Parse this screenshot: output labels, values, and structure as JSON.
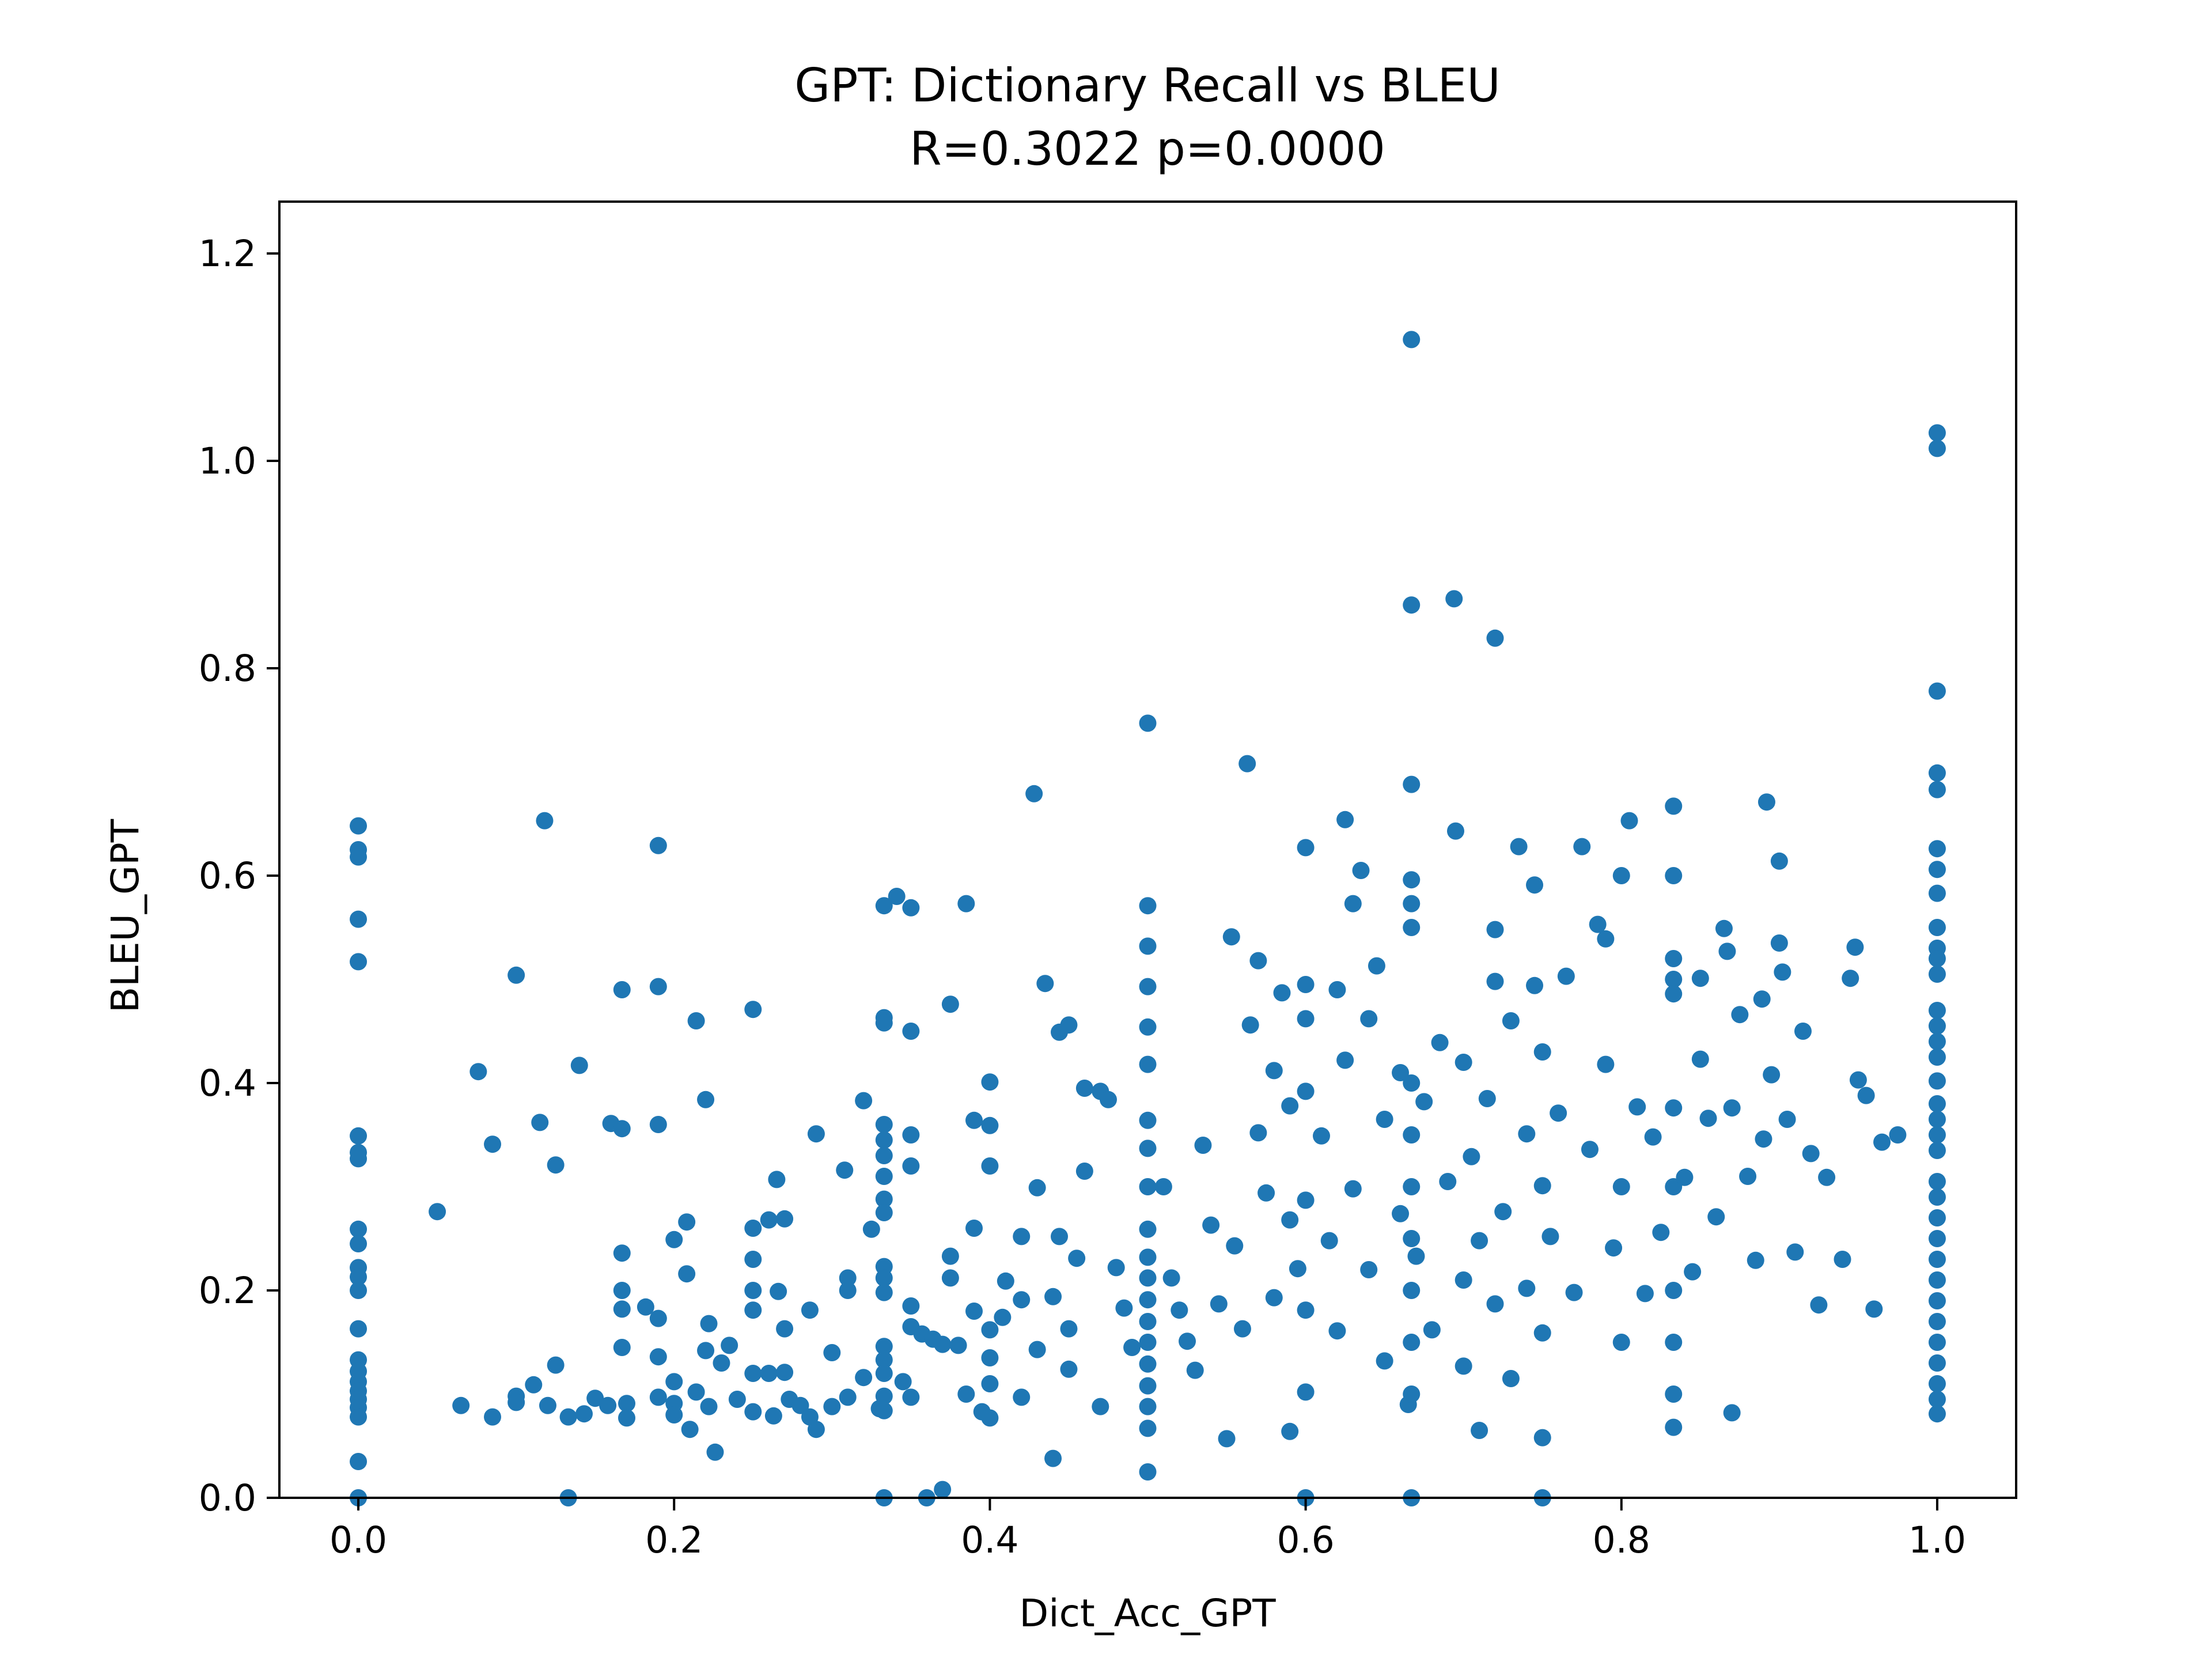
{
  "chart_data": {
    "type": "scatter",
    "title": "GPT: Dictionary Recall vs BLEU",
    "subtitle": "R=0.3022 p=0.0000",
    "xlabel": "Dict_Acc_GPT",
    "ylabel": "BLEU_GPT",
    "xlim": [
      -0.05,
      1.05
    ],
    "ylim": [
      0.0,
      1.25
    ],
    "xticks": [
      "0.0",
      "0.2",
      "0.4",
      "0.6",
      "0.8",
      "1.0"
    ],
    "yticks": [
      "0.0",
      "0.2",
      "0.4",
      "0.6",
      "0.8",
      "1.0",
      "1.2"
    ],
    "grid": false,
    "legend": "none",
    "marker_color": "#1f77b4",
    "points": [
      [
        0.0,
        0.648
      ],
      [
        0.0,
        0.625
      ],
      [
        0.0,
        0.618
      ],
      [
        0.0,
        0.558
      ],
      [
        0.0,
        0.517
      ],
      [
        0.0,
        0.349
      ],
      [
        0.0,
        0.333
      ],
      [
        0.0,
        0.327
      ],
      [
        0.0,
        0.259
      ],
      [
        0.0,
        0.245
      ],
      [
        0.0,
        0.222
      ],
      [
        0.0,
        0.213
      ],
      [
        0.0,
        0.2
      ],
      [
        0.0,
        0.163
      ],
      [
        0.0,
        0.133
      ],
      [
        0.0,
        0.122
      ],
      [
        0.0,
        0.112
      ],
      [
        0.0,
        0.103
      ],
      [
        0.0,
        0.095
      ],
      [
        0.0,
        0.087
      ],
      [
        0.0,
        0.078
      ],
      [
        0.0,
        0.035
      ],
      [
        0.0,
        0.0
      ],
      [
        0.05,
        0.276
      ],
      [
        0.065,
        0.089
      ],
      [
        0.076,
        0.411
      ],
      [
        0.085,
        0.341
      ],
      [
        0.085,
        0.078
      ],
      [
        0.1,
        0.504
      ],
      [
        0.1,
        0.098
      ],
      [
        0.1,
        0.092
      ],
      [
        0.111,
        0.109
      ],
      [
        0.115,
        0.362
      ],
      [
        0.118,
        0.653
      ],
      [
        0.12,
        0.089
      ],
      [
        0.125,
        0.321
      ],
      [
        0.125,
        0.128
      ],
      [
        0.133,
        0.0
      ],
      [
        0.133,
        0.078
      ],
      [
        0.14,
        0.417
      ],
      [
        0.143,
        0.081
      ],
      [
        0.15,
        0.096
      ],
      [
        0.158,
        0.089
      ],
      [
        0.16,
        0.361
      ],
      [
        0.167,
        0.49
      ],
      [
        0.167,
        0.356
      ],
      [
        0.167,
        0.236
      ],
      [
        0.167,
        0.2
      ],
      [
        0.167,
        0.182
      ],
      [
        0.167,
        0.145
      ],
      [
        0.17,
        0.091
      ],
      [
        0.17,
        0.077
      ],
      [
        0.182,
        0.184
      ],
      [
        0.19,
        0.493
      ],
      [
        0.19,
        0.629
      ],
      [
        0.19,
        0.36
      ],
      [
        0.19,
        0.173
      ],
      [
        0.19,
        0.136
      ],
      [
        0.19,
        0.097
      ],
      [
        0.2,
        0.249
      ],
      [
        0.2,
        0.112
      ],
      [
        0.2,
        0.091
      ],
      [
        0.2,
        0.08
      ],
      [
        0.208,
        0.266
      ],
      [
        0.208,
        0.216
      ],
      [
        0.21,
        0.066
      ],
      [
        0.214,
        0.46
      ],
      [
        0.214,
        0.102
      ],
      [
        0.22,
        0.384
      ],
      [
        0.22,
        0.142
      ],
      [
        0.222,
        0.168
      ],
      [
        0.222,
        0.088
      ],
      [
        0.226,
        0.044
      ],
      [
        0.23,
        0.13
      ],
      [
        0.235,
        0.147
      ],
      [
        0.24,
        0.095
      ],
      [
        0.25,
        0.471
      ],
      [
        0.25,
        0.26
      ],
      [
        0.25,
        0.23
      ],
      [
        0.25,
        0.2
      ],
      [
        0.25,
        0.181
      ],
      [
        0.25,
        0.12
      ],
      [
        0.25,
        0.083
      ],
      [
        0.26,
        0.268
      ],
      [
        0.26,
        0.12
      ],
      [
        0.263,
        0.079
      ],
      [
        0.265,
        0.307
      ],
      [
        0.266,
        0.199
      ],
      [
        0.27,
        0.269
      ],
      [
        0.27,
        0.163
      ],
      [
        0.27,
        0.121
      ],
      [
        0.273,
        0.095
      ],
      [
        0.28,
        0.089
      ],
      [
        0.286,
        0.181
      ],
      [
        0.286,
        0.078
      ],
      [
        0.29,
        0.351
      ],
      [
        0.29,
        0.066
      ],
      [
        0.3,
        0.14
      ],
      [
        0.3,
        0.088
      ],
      [
        0.308,
        0.316
      ],
      [
        0.31,
        0.212
      ],
      [
        0.31,
        0.2
      ],
      [
        0.31,
        0.097
      ],
      [
        0.32,
        0.383
      ],
      [
        0.32,
        0.116
      ],
      [
        0.325,
        0.259
      ],
      [
        0.33,
        0.086
      ],
      [
        0.333,
        0.571
      ],
      [
        0.333,
        0.463
      ],
      [
        0.333,
        0.458
      ],
      [
        0.333,
        0.36
      ],
      [
        0.333,
        0.345
      ],
      [
        0.333,
        0.33
      ],
      [
        0.333,
        0.31
      ],
      [
        0.333,
        0.288
      ],
      [
        0.333,
        0.275
      ],
      [
        0.333,
        0.223
      ],
      [
        0.333,
        0.212
      ],
      [
        0.333,
        0.198
      ],
      [
        0.333,
        0.146
      ],
      [
        0.333,
        0.133
      ],
      [
        0.333,
        0.12
      ],
      [
        0.333,
        0.098
      ],
      [
        0.333,
        0.084
      ],
      [
        0.333,
        0.0
      ],
      [
        0.341,
        0.58
      ],
      [
        0.345,
        0.112
      ],
      [
        0.35,
        0.569
      ],
      [
        0.35,
        0.45
      ],
      [
        0.35,
        0.35
      ],
      [
        0.35,
        0.32
      ],
      [
        0.35,
        0.185
      ],
      [
        0.35,
        0.165
      ],
      [
        0.35,
        0.097
      ],
      [
        0.357,
        0.158
      ],
      [
        0.36,
        0.0
      ],
      [
        0.364,
        0.153
      ],
      [
        0.37,
        0.008
      ],
      [
        0.37,
        0.148
      ],
      [
        0.375,
        0.476
      ],
      [
        0.375,
        0.233
      ],
      [
        0.375,
        0.212
      ],
      [
        0.38,
        0.147
      ],
      [
        0.385,
        0.573
      ],
      [
        0.385,
        0.1
      ],
      [
        0.39,
        0.364
      ],
      [
        0.39,
        0.26
      ],
      [
        0.39,
        0.18
      ],
      [
        0.395,
        0.083
      ],
      [
        0.4,
        0.401
      ],
      [
        0.4,
        0.359
      ],
      [
        0.4,
        0.32
      ],
      [
        0.4,
        0.162
      ],
      [
        0.4,
        0.135
      ],
      [
        0.4,
        0.11
      ],
      [
        0.4,
        0.077
      ],
      [
        0.408,
        0.174
      ],
      [
        0.41,
        0.209
      ],
      [
        0.42,
        0.252
      ],
      [
        0.42,
        0.191
      ],
      [
        0.42,
        0.097
      ],
      [
        0.428,
        0.679
      ],
      [
        0.43,
        0.299
      ],
      [
        0.43,
        0.143
      ],
      [
        0.435,
        0.496
      ],
      [
        0.44,
        0.038
      ],
      [
        0.44,
        0.194
      ],
      [
        0.444,
        0.449
      ],
      [
        0.444,
        0.252
      ],
      [
        0.45,
        0.456
      ],
      [
        0.45,
        0.163
      ],
      [
        0.45,
        0.124
      ],
      [
        0.455,
        0.231
      ],
      [
        0.46,
        0.395
      ],
      [
        0.46,
        0.315
      ],
      [
        0.47,
        0.392
      ],
      [
        0.47,
        0.088
      ],
      [
        0.475,
        0.384
      ],
      [
        0.48,
        0.222
      ],
      [
        0.485,
        0.183
      ],
      [
        0.49,
        0.145
      ],
      [
        0.5,
        0.747
      ],
      [
        0.5,
        0.571
      ],
      [
        0.5,
        0.532
      ],
      [
        0.5,
        0.493
      ],
      [
        0.5,
        0.454
      ],
      [
        0.5,
        0.418
      ],
      [
        0.5,
        0.364
      ],
      [
        0.5,
        0.337
      ],
      [
        0.5,
        0.3
      ],
      [
        0.5,
        0.259
      ],
      [
        0.5,
        0.232
      ],
      [
        0.5,
        0.212
      ],
      [
        0.5,
        0.191
      ],
      [
        0.5,
        0.17
      ],
      [
        0.5,
        0.15
      ],
      [
        0.5,
        0.129
      ],
      [
        0.5,
        0.108
      ],
      [
        0.5,
        0.088
      ],
      [
        0.5,
        0.067
      ],
      [
        0.5,
        0.025
      ],
      [
        0.51,
        0.3
      ],
      [
        0.515,
        0.212
      ],
      [
        0.52,
        0.181
      ],
      [
        0.525,
        0.151
      ],
      [
        0.53,
        0.123
      ],
      [
        0.535,
        0.34
      ],
      [
        0.54,
        0.263
      ],
      [
        0.545,
        0.187
      ],
      [
        0.55,
        0.057
      ],
      [
        0.553,
        0.541
      ],
      [
        0.555,
        0.243
      ],
      [
        0.56,
        0.163
      ],
      [
        0.563,
        0.708
      ],
      [
        0.565,
        0.456
      ],
      [
        0.57,
        0.352
      ],
      [
        0.57,
        0.518
      ],
      [
        0.575,
        0.294
      ],
      [
        0.58,
        0.412
      ],
      [
        0.58,
        0.193
      ],
      [
        0.585,
        0.487
      ],
      [
        0.59,
        0.378
      ],
      [
        0.59,
        0.268
      ],
      [
        0.59,
        0.064
      ],
      [
        0.595,
        0.221
      ],
      [
        0.6,
        0.627
      ],
      [
        0.6,
        0.495
      ],
      [
        0.6,
        0.462
      ],
      [
        0.6,
        0.392
      ],
      [
        0.6,
        0.287
      ],
      [
        0.6,
        0.181
      ],
      [
        0.6,
        0.102
      ],
      [
        0.6,
        0.0
      ],
      [
        0.61,
        0.349
      ],
      [
        0.615,
        0.248
      ],
      [
        0.62,
        0.49
      ],
      [
        0.62,
        0.161
      ],
      [
        0.625,
        0.654
      ],
      [
        0.625,
        0.422
      ],
      [
        0.63,
        0.573
      ],
      [
        0.63,
        0.298
      ],
      [
        0.635,
        0.605
      ],
      [
        0.64,
        0.462
      ],
      [
        0.64,
        0.22
      ],
      [
        0.645,
        0.513
      ],
      [
        0.65,
        0.365
      ],
      [
        0.65,
        0.132
      ],
      [
        0.66,
        0.41
      ],
      [
        0.66,
        0.274
      ],
      [
        0.665,
        0.09
      ],
      [
        0.667,
        1.117
      ],
      [
        0.667,
        0.861
      ],
      [
        0.667,
        0.688
      ],
      [
        0.667,
        0.596
      ],
      [
        0.667,
        0.573
      ],
      [
        0.667,
        0.55
      ],
      [
        0.667,
        0.4
      ],
      [
        0.667,
        0.35
      ],
      [
        0.667,
        0.3
      ],
      [
        0.667,
        0.25
      ],
      [
        0.667,
        0.2
      ],
      [
        0.667,
        0.15
      ],
      [
        0.667,
        0.1
      ],
      [
        0.667,
        0.0
      ],
      [
        0.67,
        0.233
      ],
      [
        0.675,
        0.382
      ],
      [
        0.68,
        0.162
      ],
      [
        0.685,
        0.439
      ],
      [
        0.69,
        0.305
      ],
      [
        0.694,
        0.867
      ],
      [
        0.695,
        0.643
      ],
      [
        0.7,
        0.42
      ],
      [
        0.7,
        0.21
      ],
      [
        0.7,
        0.127
      ],
      [
        0.705,
        0.329
      ],
      [
        0.71,
        0.065
      ],
      [
        0.71,
        0.248
      ],
      [
        0.715,
        0.385
      ],
      [
        0.72,
        0.829
      ],
      [
        0.72,
        0.548
      ],
      [
        0.72,
        0.498
      ],
      [
        0.72,
        0.187
      ],
      [
        0.725,
        0.276
      ],
      [
        0.73,
        0.46
      ],
      [
        0.73,
        0.115
      ],
      [
        0.735,
        0.628
      ],
      [
        0.74,
        0.351
      ],
      [
        0.74,
        0.202
      ],
      [
        0.745,
        0.591
      ],
      [
        0.745,
        0.494
      ],
      [
        0.75,
        0.43
      ],
      [
        0.75,
        0.301
      ],
      [
        0.75,
        0.159
      ],
      [
        0.75,
        0.0
      ],
      [
        0.75,
        0.058
      ],
      [
        0.755,
        0.252
      ],
      [
        0.76,
        0.371
      ],
      [
        0.765,
        0.503
      ],
      [
        0.77,
        0.198
      ],
      [
        0.775,
        0.628
      ],
      [
        0.78,
        0.336
      ],
      [
        0.785,
        0.553
      ],
      [
        0.79,
        0.539
      ],
      [
        0.79,
        0.418
      ],
      [
        0.795,
        0.241
      ],
      [
        0.8,
        0.6
      ],
      [
        0.8,
        0.3
      ],
      [
        0.8,
        0.15
      ],
      [
        0.805,
        0.653
      ],
      [
        0.81,
        0.377
      ],
      [
        0.815,
        0.197
      ],
      [
        0.82,
        0.348
      ],
      [
        0.825,
        0.256
      ],
      [
        0.833,
        0.667
      ],
      [
        0.833,
        0.6
      ],
      [
        0.833,
        0.52
      ],
      [
        0.833,
        0.5
      ],
      [
        0.833,
        0.486
      ],
      [
        0.833,
        0.376
      ],
      [
        0.833,
        0.3
      ],
      [
        0.833,
        0.2
      ],
      [
        0.833,
        0.15
      ],
      [
        0.833,
        0.1
      ],
      [
        0.833,
        0.068
      ],
      [
        0.84,
        0.309
      ],
      [
        0.845,
        0.218
      ],
      [
        0.85,
        0.501
      ],
      [
        0.85,
        0.423
      ],
      [
        0.855,
        0.366
      ],
      [
        0.86,
        0.271
      ],
      [
        0.865,
        0.549
      ],
      [
        0.867,
        0.527
      ],
      [
        0.87,
        0.376
      ],
      [
        0.87,
        0.082
      ],
      [
        0.875,
        0.466
      ],
      [
        0.88,
        0.31
      ],
      [
        0.885,
        0.229
      ],
      [
        0.889,
        0.481
      ],
      [
        0.89,
        0.346
      ],
      [
        0.892,
        0.671
      ],
      [
        0.895,
        0.408
      ],
      [
        0.9,
        0.614
      ],
      [
        0.9,
        0.535
      ],
      [
        0.902,
        0.507
      ],
      [
        0.905,
        0.365
      ],
      [
        0.91,
        0.237
      ],
      [
        0.915,
        0.45
      ],
      [
        0.92,
        0.332
      ],
      [
        0.925,
        0.186
      ],
      [
        0.93,
        0.309
      ],
      [
        0.94,
        0.23
      ],
      [
        0.945,
        0.501
      ],
      [
        0.948,
        0.531
      ],
      [
        0.95,
        0.403
      ],
      [
        0.955,
        0.388
      ],
      [
        0.96,
        0.182
      ],
      [
        0.965,
        0.343
      ],
      [
        0.975,
        0.35
      ],
      [
        1.0,
        1.027
      ],
      [
        1.0,
        1.012
      ],
      [
        1.0,
        0.778
      ],
      [
        1.0,
        0.699
      ],
      [
        1.0,
        0.683
      ],
      [
        1.0,
        0.626
      ],
      [
        1.0,
        0.606
      ],
      [
        1.0,
        0.583
      ],
      [
        1.0,
        0.55
      ],
      [
        1.0,
        0.53
      ],
      [
        1.0,
        0.52
      ],
      [
        1.0,
        0.505
      ],
      [
        1.0,
        0.47
      ],
      [
        1.0,
        0.455
      ],
      [
        1.0,
        0.44
      ],
      [
        1.0,
        0.425
      ],
      [
        1.0,
        0.402
      ],
      [
        1.0,
        0.38
      ],
      [
        1.0,
        0.365
      ],
      [
        1.0,
        0.35
      ],
      [
        1.0,
        0.335
      ],
      [
        1.0,
        0.305
      ],
      [
        1.0,
        0.29
      ],
      [
        1.0,
        0.27
      ],
      [
        1.0,
        0.25
      ],
      [
        1.0,
        0.23
      ],
      [
        1.0,
        0.21
      ],
      [
        1.0,
        0.19
      ],
      [
        1.0,
        0.17
      ],
      [
        1.0,
        0.15
      ],
      [
        1.0,
        0.13
      ],
      [
        1.0,
        0.11
      ],
      [
        1.0,
        0.095
      ],
      [
        1.0,
        0.081
      ]
    ]
  }
}
